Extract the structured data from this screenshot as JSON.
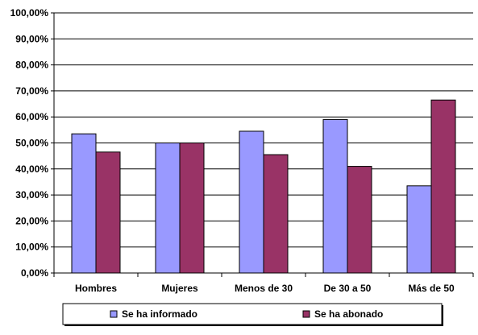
{
  "chart_data": {
    "type": "bar",
    "categories": [
      "Hombres",
      "Mujeres",
      "Menos de 30",
      "De 30 a 50",
      "Más de 50"
    ],
    "series": [
      {
        "name": "Se ha informado",
        "values": [
          53.5,
          50.0,
          54.5,
          59.0,
          33.5
        ],
        "color": "#9999ff"
      },
      {
        "name": "Se ha abonado",
        "values": [
          46.5,
          50.0,
          45.5,
          41.0,
          66.5
        ],
        "color": "#993366"
      }
    ],
    "ylim": [
      0,
      100
    ],
    "yticks": [
      "0,00%",
      "10,00%",
      "20,00%",
      "30,00%",
      "40,00%",
      "50,00%",
      "60,00%",
      "70,00%",
      "80,00%",
      "90,00%",
      "100,00%"
    ],
    "grid": true,
    "legend": "bottom",
    "title": "",
    "xlabel": "",
    "ylabel": ""
  }
}
